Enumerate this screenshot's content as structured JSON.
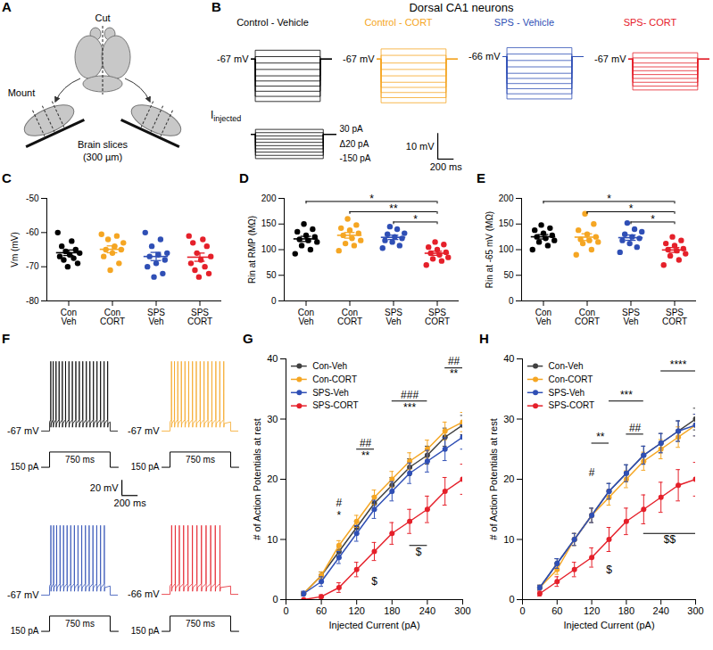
{
  "chart_data": [
    {
      "panel": "A",
      "type": "diagram",
      "labels": {
        "cut": "Cut",
        "mount": "Mount",
        "slices": [
          "Brain slices",
          "(300 µm)"
        ]
      }
    },
    {
      "panel": "B",
      "type": "traces",
      "title": "Dorsal CA1 neurons",
      "xlim": [
        0,
        1000
      ],
      "ylim": [
        -90,
        -58
      ],
      "step_ms": [
        50,
        850
      ],
      "currents": [
        30,
        10,
        -10,
        -30,
        -50,
        -70,
        -90,
        -110,
        -130,
        -150
      ],
      "current_label": [
        "I",
        "injected"
      ],
      "step_labels": {
        "top": "30 pA",
        "delta": "Δ20 pA",
        "bottom": "-150 pA"
      },
      "series": [
        {
          "name": "Control - Vehicle",
          "color": "#000000",
          "rest": -67,
          "rest_label": "-67 mV",
          "values": [
            -63.5,
            -66,
            -68.5,
            -71,
            -73.5,
            -75.5,
            -77.5,
            -79.5,
            -81.5,
            -83.5
          ]
        },
        {
          "name": "Control - CORT",
          "color": "#F5A623",
          "rest": -67,
          "rest_label": "-67 mV",
          "values": [
            -63,
            -65.5,
            -68.5,
            -71,
            -73.5,
            -76,
            -78,
            -80,
            -82,
            -84
          ]
        },
        {
          "name": "SPS - Vehicle",
          "color": "#2F4FB5",
          "rest": -66,
          "rest_label": "-66 mV",
          "values": [
            -62.5,
            -65,
            -67.5,
            -70,
            -72.5,
            -74.5,
            -76.5,
            -78.5,
            -80.5,
            -82.5
          ]
        },
        {
          "name": "SPS- CORT",
          "color": "#E5202A",
          "rest": -67,
          "rest_label": "-67 mV",
          "values": [
            -64.5,
            -66.5,
            -68.5,
            -70,
            -71.5,
            -73,
            -74.5,
            -76,
            -77.5,
            -79
          ]
        }
      ],
      "scale_bar": {
        "x": 200,
        "y": 10,
        "x_label": "200 ms",
        "y_label": "10 mV"
      }
    },
    {
      "panel": "C",
      "type": "scatter",
      "categories": [
        "Con Veh",
        "Con CORT",
        "SPS Veh",
        "SPS CORT"
      ],
      "colors": [
        "#000000",
        "#F5A623",
        "#2F4FB5",
        "#E5202A"
      ],
      "ylabel": "Vm (mV)",
      "ylim": [
        -80,
        -50
      ],
      "yticks": [
        -80,
        -70,
        -60,
        -50
      ],
      "points": [
        [
          -60,
          -62.5,
          -64,
          -65,
          -65.5,
          -66,
          -66.5,
          -67,
          -67.5,
          -68,
          -69,
          -70
        ],
        [
          -60.5,
          -61,
          -62,
          -63,
          -64,
          -65,
          -65,
          -66,
          -67,
          -69,
          -71
        ],
        [
          -60,
          -62,
          -64,
          -66,
          -66.5,
          -67,
          -68,
          -69,
          -70,
          -72,
          -73
        ],
        [
          -61,
          -62,
          -63,
          -64,
          -66,
          -67,
          -68,
          -69,
          -70,
          -71,
          -72,
          -73
        ]
      ],
      "mean": [
        -65.9,
        -64.9,
        -67.0,
        -67.2
      ],
      "sem": [
        0.8,
        1.0,
        1.2,
        1.2
      ]
    },
    {
      "panel": "D",
      "type": "scatter",
      "categories": [
        "Con Veh",
        "Con CORT",
        "SPS Veh",
        "SPS CORT"
      ],
      "colors": [
        "#000000",
        "#F5A623",
        "#2F4FB5",
        "#E5202A"
      ],
      "ylabel": "Rin at RMP (MΩ)",
      "ylim": [
        0,
        200
      ],
      "yticks": [
        0,
        50,
        100,
        150,
        200
      ],
      "points": [
        [
          92,
          100,
          108,
          115,
          118,
          120,
          125,
          128,
          135,
          140,
          150
        ],
        [
          98,
          108,
          112,
          118,
          122,
          128,
          132,
          138,
          142,
          148,
          160
        ],
        [
          103,
          108,
          115,
          118,
          122,
          125,
          130,
          132,
          140,
          145
        ],
        [
          70,
          78,
          82,
          85,
          90,
          93,
          95,
          100,
          105,
          110,
          115
        ]
      ],
      "mean": [
        121,
        128,
        124,
        93
      ],
      "sem": [
        5,
        5.5,
        4.2,
        4
      ],
      "comparisons": [
        {
          "pair": [
            0,
            3
          ],
          "label": "*"
        },
        {
          "pair": [
            1,
            3
          ],
          "label": "**"
        },
        {
          "pair": [
            2,
            3
          ],
          "label": "*"
        }
      ]
    },
    {
      "panel": "E",
      "type": "scatter",
      "categories": [
        "Con Veh",
        "Con CORT",
        "SPS Veh",
        "SPS CORT"
      ],
      "colors": [
        "#000000",
        "#F5A623",
        "#2F4FB5",
        "#E5202A"
      ],
      "ylabel": "Rin at -65 mV (MΩ)",
      "ylim": [
        0,
        200
      ],
      "yticks": [
        0,
        50,
        100,
        150,
        200
      ],
      "points": [
        [
          100,
          108,
          115,
          118,
          122,
          125,
          128,
          132,
          138,
          142,
          148
        ],
        [
          90,
          100,
          112,
          115,
          118,
          120,
          125,
          130,
          138,
          150,
          170
        ],
        [
          95,
          105,
          112,
          118,
          122,
          125,
          130,
          135,
          140,
          152
        ],
        [
          70,
          80,
          88,
          92,
          98,
          100,
          102,
          108,
          112,
          118,
          125
        ]
      ],
      "mean": [
        125.1,
        124.4,
        123.4,
        99.4
      ],
      "sem": [
        4.3,
        6.6,
        5.2,
        4.8
      ],
      "comparisons": [
        {
          "pair": [
            0,
            3
          ],
          "label": "*"
        },
        {
          "pair": [
            1,
            3
          ],
          "label": "*"
        },
        {
          "pair": [
            2,
            3
          ],
          "label": "*"
        }
      ]
    },
    {
      "panel": "F",
      "type": "traces",
      "xlim": [
        -100,
        850
      ],
      "ylim": [
        -80,
        40
      ],
      "step_ms": [
        0,
        750
      ],
      "step_pA": 150,
      "step_labels": {
        "amplitude": "150 pA",
        "duration": "750 ms"
      },
      "series": [
        {
          "color": "#000000",
          "rest": -67,
          "rest_label": "-67 mV",
          "plateau": -55,
          "peak": 25,
          "spike_times": [
            15,
            45,
            80,
            118,
            158,
            198,
            240,
            282,
            325,
            368,
            411,
            455,
            499,
            543,
            587,
            631,
            675,
            719
          ]
        },
        {
          "color": "#F5A623",
          "rest": -67,
          "rest_label": "-67 mV",
          "plateau": -55,
          "peak": 25,
          "spike_times": [
            18,
            55,
            96,
            140,
            185,
            231,
            278,
            325,
            373,
            421,
            469,
            518,
            567,
            616,
            665
          ]
        },
        {
          "color": "#2F4FB5",
          "rest": -67,
          "rest_label": "-67 mV",
          "plateau": -55,
          "peak": 25,
          "spike_times": [
            16,
            50,
            88,
            130,
            173,
            217,
            262,
            307,
            352,
            398,
            444,
            490,
            537,
            584,
            631,
            678
          ]
        },
        {
          "color": "#E5202A",
          "rest": -66,
          "rest_label": "-66 mV",
          "plateau": -55,
          "peak": 25,
          "spike_times": [
            20,
            65,
            115,
            168,
            222,
            277,
            333,
            389,
            446,
            503,
            560,
            618
          ]
        }
      ],
      "scale_bar": {
        "x": 200,
        "y": 20,
        "x_label": "200 ms",
        "y_label": "20 mV"
      }
    },
    {
      "panel": "G",
      "type": "line",
      "xlabel": "Injected Current (pA)",
      "ylabel": "# of Action Potentials at rest",
      "x": [
        30,
        60,
        90,
        120,
        150,
        180,
        210,
        240,
        270,
        300
      ],
      "xlim": [
        0,
        300
      ],
      "xticks": [
        0,
        60,
        120,
        180,
        240,
        300
      ],
      "ylim": [
        0,
        40
      ],
      "yticks": [
        0,
        10,
        20,
        30,
        40
      ],
      "legend": "top-left",
      "marker": "circle",
      "series": [
        {
          "name": "Con-Veh",
          "color": "#404040",
          "values": [
            1,
            4,
            8,
            12,
            16,
            19,
            22,
            24,
            27,
            29
          ],
          "sem": [
            0.3,
            0.6,
            0.8,
            1,
            1.2,
            1.3,
            1.4,
            1.5,
            1.5,
            1.6
          ]
        },
        {
          "name": "Con-CORT",
          "color": "#F5A623",
          "values": [
            1,
            4,
            9,
            13,
            17,
            20,
            23,
            25,
            28,
            29.5
          ],
          "sem": [
            0.3,
            0.6,
            0.8,
            1,
            1.2,
            1.3,
            1.4,
            1.5,
            1.5,
            1.6
          ]
        },
        {
          "name": "SPS-Veh",
          "color": "#2F4FB5",
          "values": [
            1,
            3,
            7,
            11,
            15,
            18,
            21,
            23,
            25,
            27
          ],
          "sem": [
            0.4,
            0.8,
            1,
            1.3,
            1.5,
            1.6,
            1.7,
            1.8,
            1.9,
            2
          ]
        },
        {
          "name": "SPS-CORT",
          "color": "#E5202A",
          "values": [
            0,
            0.5,
            2,
            5,
            8,
            11,
            13,
            15,
            18,
            20
          ],
          "sem": [
            0,
            0.3,
            0.8,
            1.2,
            1.5,
            1.8,
            2,
            2.2,
            2.3,
            2.5
          ]
        }
      ],
      "annotations": [
        {
          "x": [
            90,
            90
          ],
          "y": 15,
          "above": "#",
          "below": "*"
        },
        {
          "x": [
            120,
            150
          ],
          "y": 25,
          "above": "##",
          "below": "**"
        },
        {
          "x": [
            180,
            240
          ],
          "y": 33,
          "above": "###",
          "below": "***"
        },
        {
          "x": [
            270,
            300
          ],
          "y": 38.5,
          "above": "##",
          "below": "**"
        },
        {
          "x": [
            150,
            150
          ],
          "y": 4,
          "below": "$"
        },
        {
          "x": [
            210,
            240
          ],
          "y": 9,
          "below": "$"
        }
      ]
    },
    {
      "panel": "H",
      "type": "line",
      "xlabel": "Injected Current (pA)",
      "ylabel": "# of Action Potentials at rest",
      "x": [
        30,
        60,
        90,
        120,
        150,
        180,
        210,
        240,
        270,
        300
      ],
      "xlim": [
        0,
        300
      ],
      "xticks": [
        0,
        60,
        120,
        180,
        240,
        300
      ],
      "ylim": [
        0,
        40
      ],
      "yticks": [
        0,
        10,
        20,
        30,
        40
      ],
      "legend": "top-left",
      "marker": "circle",
      "series": [
        {
          "name": "Con-Veh",
          "color": "#404040",
          "values": [
            2,
            6,
            10,
            14,
            18,
            21,
            24,
            26,
            28,
            30
          ],
          "sem": [
            0.4,
            0.8,
            1,
            1.2,
            1.3,
            1.4,
            1.5,
            1.6,
            1.7,
            1.8
          ]
        },
        {
          "name": "Con-CORT",
          "color": "#F5A623",
          "values": [
            2,
            5,
            10,
            14,
            17,
            20,
            23,
            25,
            27,
            29
          ],
          "sem": [
            0.4,
            0.8,
            1,
            1.2,
            1.3,
            1.4,
            1.5,
            1.6,
            1.7,
            1.8
          ]
        },
        {
          "name": "SPS-Veh",
          "color": "#2F4FB5",
          "values": [
            2,
            6,
            10,
            14,
            18,
            21,
            24,
            26,
            28,
            29
          ],
          "sem": [
            0.4,
            0.8,
            1,
            1.2,
            1.3,
            1.4,
            1.5,
            1.6,
            1.7,
            1.8
          ]
        },
        {
          "name": "SPS-CORT",
          "color": "#E5202A",
          "values": [
            1,
            3,
            5,
            7,
            10,
            13,
            15,
            17,
            19,
            20
          ],
          "sem": [
            0.4,
            0.8,
            1.2,
            1.6,
            2,
            2.2,
            2.4,
            2.5,
            2.6,
            2.8
          ]
        }
      ],
      "annotations": [
        {
          "x": [
            120,
            120
          ],
          "y": 20,
          "above": "#"
        },
        {
          "x": [
            120,
            150
          ],
          "y": 26,
          "above": "**"
        },
        {
          "x": [
            180,
            210
          ],
          "y": 27.5,
          "above": "##"
        },
        {
          "x": [
            150,
            210
          ],
          "y": 33,
          "above": "***"
        },
        {
          "x": [
            240,
            300
          ],
          "y": 38,
          "above": "****"
        },
        {
          "x": [
            150,
            150
          ],
          "y": 6,
          "below": "$"
        },
        {
          "x": [
            210,
            300
          ],
          "y": 11,
          "below": "$$"
        }
      ]
    }
  ]
}
